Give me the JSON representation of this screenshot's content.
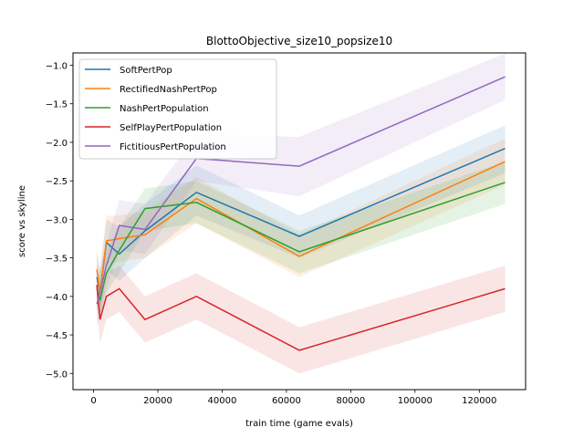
{
  "chart_data": {
    "type": "line",
    "title": "BlottoObjective_size10_popsize10",
    "xlabel": "train time (game evals)",
    "ylabel": "score vs skyline",
    "xlim": [
      -6400,
      134400
    ],
    "ylim": [
      -5.21,
      -0.84
    ],
    "xticks": [
      0,
      20000,
      40000,
      60000,
      80000,
      100000,
      120000
    ],
    "xtick_labels": [
      "0",
      "20000",
      "40000",
      "60000",
      "80000",
      "100000",
      "120000"
    ],
    "yticks": [
      -1.0,
      -1.5,
      -2.0,
      -2.5,
      -3.0,
      -3.5,
      -4.0,
      -4.5,
      -5.0
    ],
    "ytick_labels": [
      "−1.0",
      "−1.5",
      "−2.0",
      "−2.5",
      "−3.0",
      "−3.5",
      "−4.0",
      "−4.5",
      "−5.0"
    ],
    "grid": false,
    "legend_position": "top-left",
    "x": [
      1000,
      2000,
      4000,
      8000,
      16000,
      32000,
      64000,
      128000
    ],
    "series": [
      {
        "name": "SoftPertPop",
        "color": "#1f77b4",
        "values": [
          -3.75,
          -3.95,
          -3.3,
          -3.45,
          -3.15,
          -2.65,
          -3.22,
          -2.08
        ],
        "lower": [
          -4.05,
          -4.25,
          -3.65,
          -3.8,
          -3.5,
          -2.95,
          -3.5,
          -2.4
        ],
        "upper": [
          -3.45,
          -3.65,
          -3.0,
          -3.1,
          -2.8,
          -2.3,
          -2.95,
          -1.78
        ]
      },
      {
        "name": "RectifiedNashPertPop",
        "color": "#ff7f0e",
        "values": [
          -3.65,
          -3.95,
          -3.28,
          -3.25,
          -3.2,
          -2.73,
          -3.48,
          -2.25
        ],
        "lower": [
          -3.95,
          -4.25,
          -3.6,
          -3.55,
          -3.5,
          -3.05,
          -3.75,
          -2.55
        ],
        "upper": [
          -3.35,
          -3.65,
          -2.95,
          -2.95,
          -2.9,
          -2.45,
          -3.2,
          -1.95
        ]
      },
      {
        "name": "NashPertPopulation",
        "color": "#2ca02c",
        "values": [
          -3.9,
          -4.05,
          -3.7,
          -3.4,
          -2.86,
          -2.78,
          -3.42,
          -2.52
        ],
        "lower": [
          -4.15,
          -4.3,
          -3.95,
          -3.7,
          -3.15,
          -3.05,
          -3.7,
          -2.8
        ],
        "upper": [
          -3.6,
          -3.75,
          -3.4,
          -3.1,
          -2.6,
          -2.5,
          -3.15,
          -2.25
        ]
      },
      {
        "name": "SelfPlayPertPopulation",
        "color": "#d62728",
        "values": [
          -3.85,
          -4.3,
          -4.0,
          -3.9,
          -4.3,
          -4.0,
          -4.7,
          -3.9
        ],
        "lower": [
          -4.15,
          -4.6,
          -4.3,
          -4.2,
          -4.6,
          -4.3,
          -5.0,
          -4.2
        ],
        "upper": [
          -3.55,
          -4.0,
          -3.7,
          -3.6,
          -4.0,
          -3.7,
          -4.4,
          -3.6
        ]
      },
      {
        "name": "FictitiousPertPopulation",
        "color": "#9467bd",
        "values": [
          -4.1,
          -3.95,
          -3.6,
          -3.08,
          -3.13,
          -2.21,
          -2.31,
          -1.15
        ],
        "lower": [
          -4.4,
          -4.25,
          -3.9,
          -3.4,
          -3.45,
          -2.5,
          -2.7,
          -1.45
        ],
        "upper": [
          -3.8,
          -3.65,
          -3.3,
          -2.75,
          -2.8,
          -1.9,
          -1.93,
          -0.85
        ]
      }
    ]
  }
}
